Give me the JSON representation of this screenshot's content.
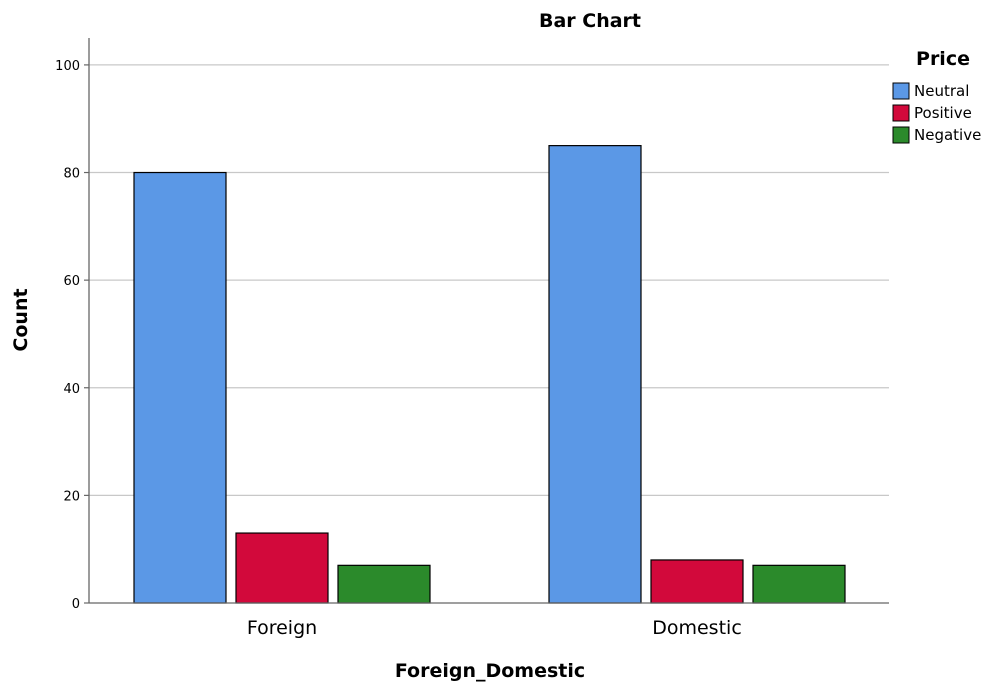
{
  "chart_data": {
    "type": "bar",
    "title": "Bar Chart",
    "xlabel": "Foreign_Domestic",
    "ylabel": "Count",
    "categories": [
      "Foreign",
      "Domestic"
    ],
    "series": [
      {
        "name": "Neutral",
        "values": [
          80,
          85
        ],
        "color": "#5b98e6"
      },
      {
        "name": "Positive",
        "values": [
          13,
          8
        ],
        "color": "#d2093b"
      },
      {
        "name": "Negative",
        "values": [
          7,
          7
        ],
        "color": "#2b8a2b"
      }
    ],
    "legend_title": "Price",
    "legend_position": "top-right",
    "ylim": [
      0,
      105
    ],
    "yticks": [
      0,
      20,
      40,
      60,
      80,
      100
    ],
    "grid": true
  }
}
